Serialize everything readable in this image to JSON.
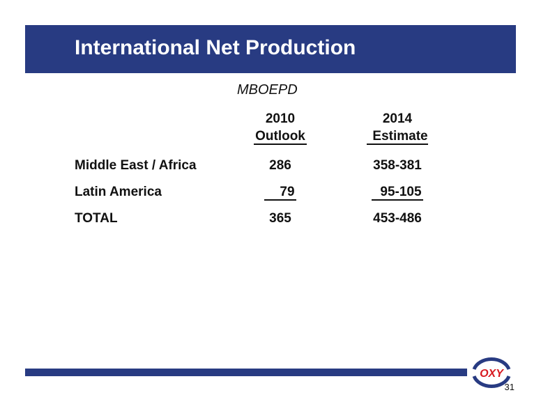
{
  "header": {
    "title": "International Net Production"
  },
  "unit": "MBOEPD",
  "table": {
    "columns": [
      [
        "2010",
        "Outlook"
      ],
      [
        "2014",
        "Estimate"
      ]
    ],
    "rows": [
      [
        "Middle East / Africa",
        286,
        "358-381"
      ],
      [
        "Latin America",
        79,
        "95-105"
      ],
      [
        "TOTAL",
        365,
        "453-486"
      ]
    ]
  },
  "logo": "OXY",
  "page_number": 31
}
